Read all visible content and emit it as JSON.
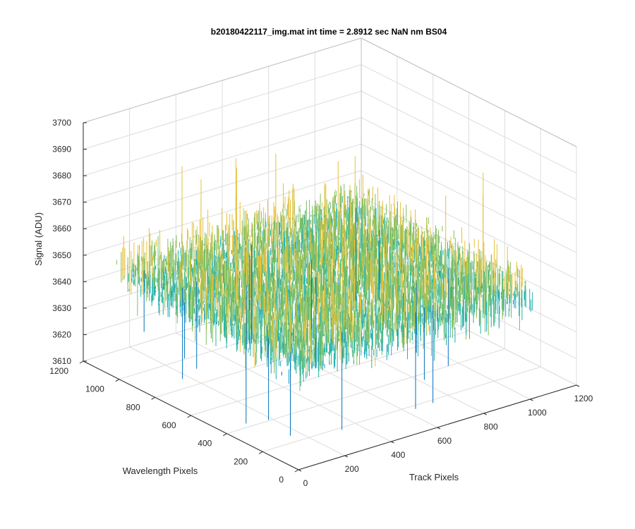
{
  "chart_data": {
    "type": "surface",
    "title": "b20180422117_img.mat int time = 2.8912 sec  NaN nm BS04",
    "xlabel": "Track Pixels",
    "ylabel": "Wavelength Pixels",
    "zlabel": "Signal (ADU)",
    "xlim": [
      0,
      1200
    ],
    "ylim": [
      0,
      1200
    ],
    "zlim": [
      3610,
      3700
    ],
    "x_ticks": [
      "0",
      "200",
      "400",
      "600",
      "800",
      "1000",
      "1200"
    ],
    "y_ticks": [
      "0",
      "200",
      "400",
      "600",
      "800",
      "1000",
      "1200"
    ],
    "z_ticks": [
      "3610",
      "3620",
      "3630",
      "3640",
      "3650",
      "3660",
      "3670",
      "3680",
      "3690",
      "3700"
    ],
    "grid": true,
    "surface": {
      "x_range": [
        0,
        1024
      ],
      "y_range": [
        0,
        1024
      ],
      "mean_signal": 3650,
      "signal_spread": 8,
      "min_signal": 3612,
      "max_signal": 3698
    },
    "colormap": [
      "#0072bd",
      "#1aa5c7",
      "#26b3a8",
      "#7fbf5f",
      "#e6c13a"
    ]
  }
}
